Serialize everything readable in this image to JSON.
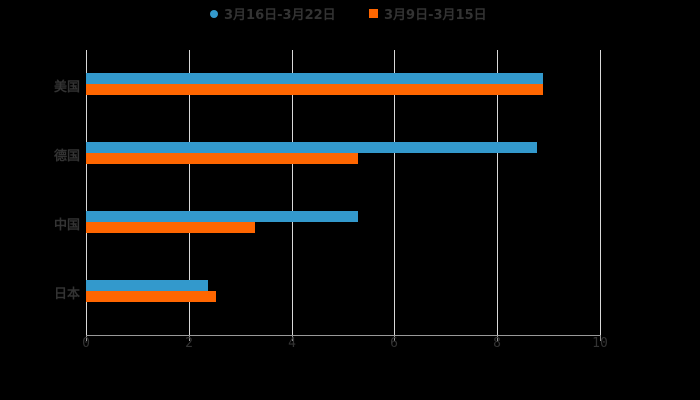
{
  "chart_data": {
    "type": "bar",
    "orientation": "horizontal",
    "title": "",
    "xlabel": "",
    "ylabel": "",
    "xlim": [
      0,
      10
    ],
    "xticks": [
      "0",
      "2",
      "4",
      "6",
      "8",
      "10"
    ],
    "grid": true,
    "legend_position": "top",
    "categories": [
      "美国",
      "德国",
      "中国",
      "日本"
    ],
    "series": [
      {
        "name": "3月16日-3月22日",
        "color": "#3399cc",
        "values": [
          8.9,
          8.77,
          5.29,
          2.37
        ]
      },
      {
        "name": "3月9日-3月15日",
        "color": "#ff6600",
        "values": [
          8.9,
          5.29,
          3.29,
          2.53
        ]
      }
    ]
  },
  "legend": {
    "items": [
      {
        "label": "3月16日-3月22日",
        "color": "#3399cc",
        "marker": "circle"
      },
      {
        "label": "3月9日-3月15日",
        "color": "#ff6600",
        "marker": "square"
      }
    ]
  }
}
